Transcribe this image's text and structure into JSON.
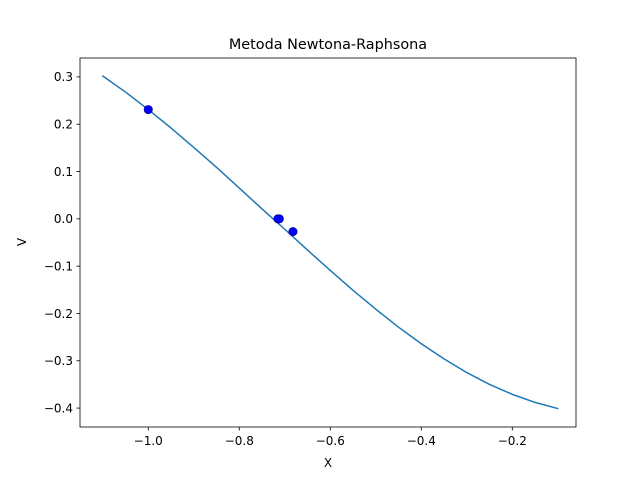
{
  "chart_data": {
    "type": "line",
    "title": "Metoda Newtona-Raphsona",
    "xlabel": "X",
    "ylabel": "V",
    "xlim": [
      -1.15,
      -0.06
    ],
    "ylim": [
      -0.44,
      0.34
    ],
    "xticks": [
      -1.0,
      -0.8,
      -0.6,
      -0.4,
      -0.2
    ],
    "xtick_labels": [
      "−1.0",
      "−0.8",
      "−0.6",
      "−0.4",
      "−0.2"
    ],
    "yticks": [
      0.3,
      0.2,
      0.1,
      0.0,
      -0.1,
      -0.2,
      -0.3,
      -0.4
    ],
    "ytick_labels": [
      "0.3",
      "0.2",
      "0.1",
      "0.0",
      "−0.1",
      "−0.2",
      "−0.3",
      "−0.4"
    ],
    "grid": false,
    "series": [
      {
        "kind": "line",
        "color": "#1f77b4",
        "x": [
          -1.1,
          -1.05,
          -1.0,
          -0.95,
          -0.9,
          -0.85,
          -0.8,
          -0.75,
          -0.7,
          -0.65,
          -0.6,
          -0.55,
          -0.5,
          -0.45,
          -0.4,
          -0.35,
          -0.3,
          -0.25,
          -0.2,
          -0.15,
          -0.1
        ],
        "y": [
          0.302,
          0.268,
          0.231,
          0.192,
          0.151,
          0.109,
          0.065,
          0.021,
          -0.022,
          -0.066,
          -0.109,
          -0.151,
          -0.191,
          -0.229,
          -0.264,
          -0.296,
          -0.325,
          -0.35,
          -0.371,
          -0.388,
          -0.401
        ]
      },
      {
        "kind": "scatter",
        "color": "#0000ff",
        "x": [
          -1.0,
          -0.715,
          -0.712,
          -0.682
        ],
        "y": [
          0.231,
          0.0,
          0.0,
          -0.027
        ]
      }
    ]
  }
}
